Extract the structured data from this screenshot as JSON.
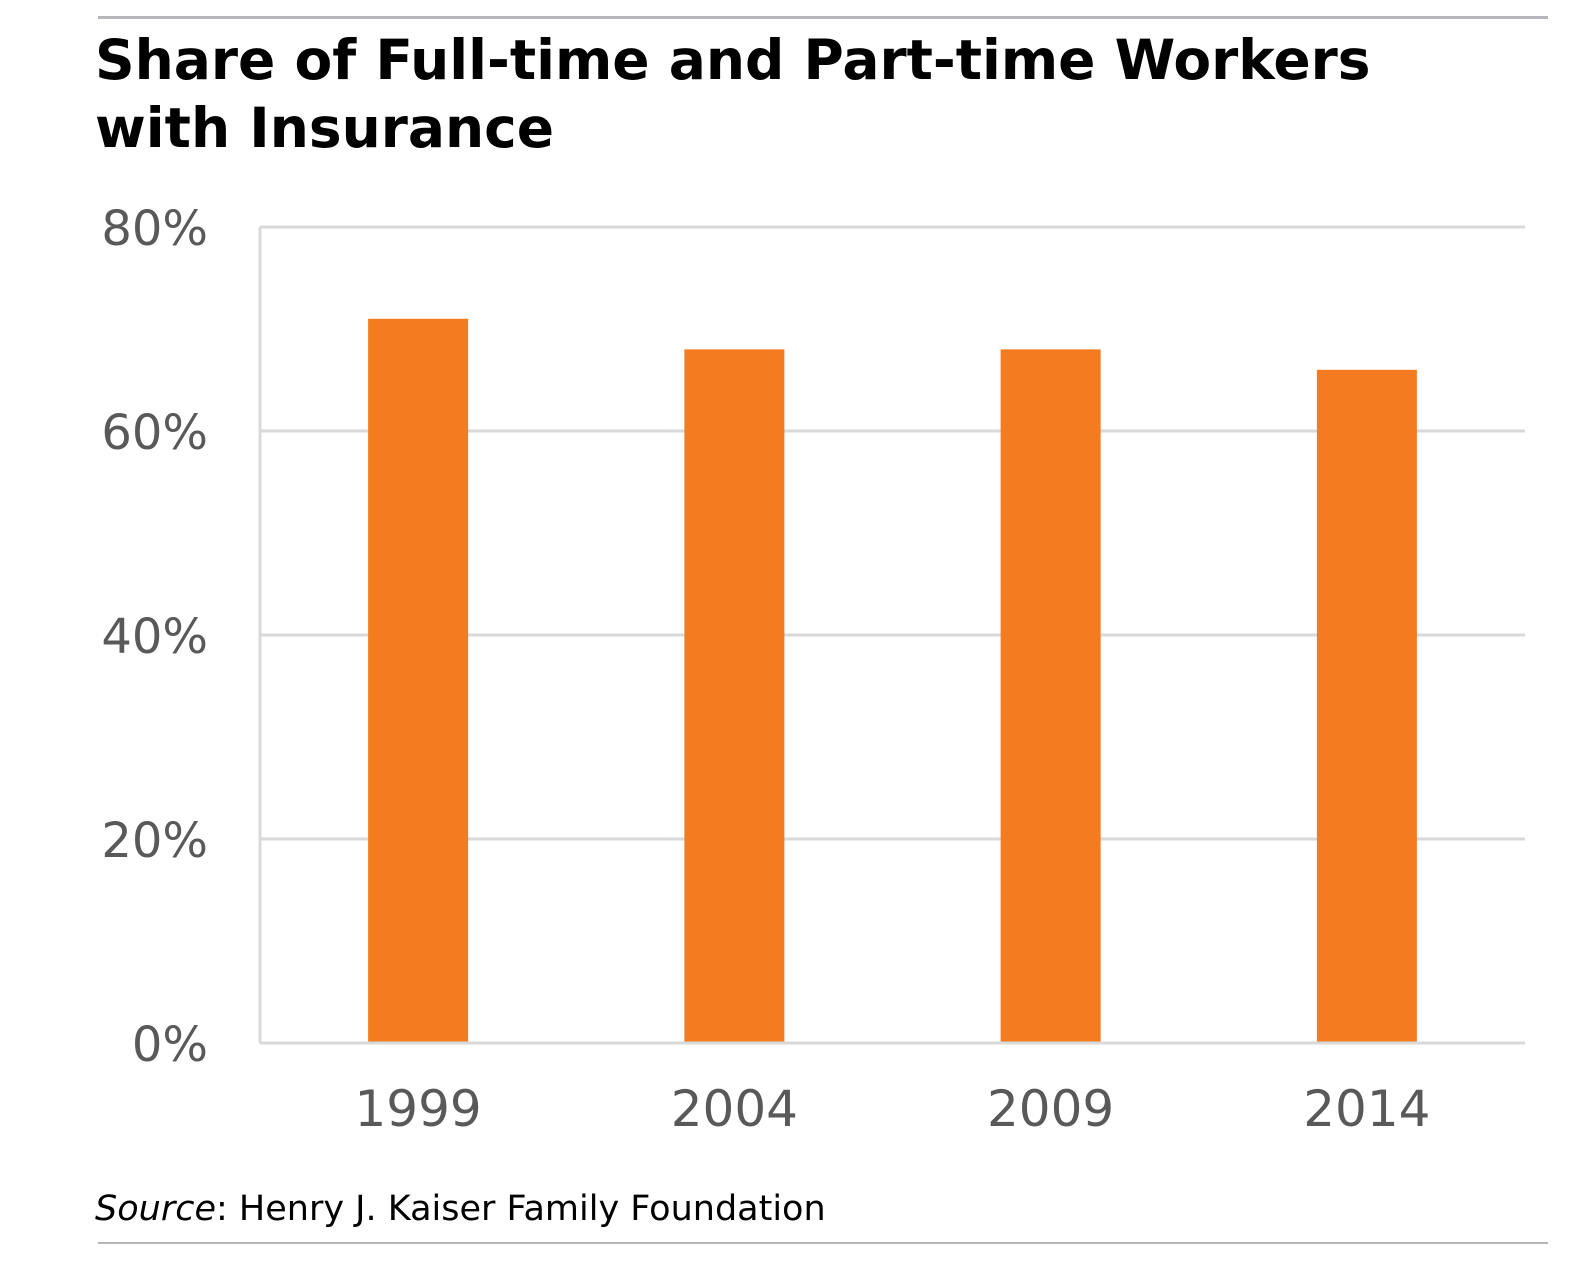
{
  "chart_data": {
    "type": "bar",
    "title": "Share of Full-time and Part-time Workers with Insurance",
    "title_lines": [
      "Share of Full-time and Part-time Workers",
      "with Insurance"
    ],
    "categories": [
      "1999",
      "2004",
      "2009",
      "2014"
    ],
    "values": [
      71,
      68,
      68,
      66
    ],
    "unit": "%",
    "ylim": [
      0,
      80
    ],
    "yticks": [
      0,
      20,
      40,
      60,
      80
    ],
    "ytick_labels": [
      "0%",
      "20%",
      "40%",
      "60%",
      "80%"
    ],
    "xlabel": "",
    "ylabel": "",
    "grid": true,
    "legend": "none",
    "colors": {
      "bar": "#f47b20",
      "grid": "#d9d9d9",
      "axis": "#d9d9d9",
      "tick_text": "#595959",
      "rule": "#b7b7bb"
    }
  },
  "source": {
    "label": "Source",
    "separator": ":",
    "text": " Henry J. Kaiser Family Foundation"
  }
}
